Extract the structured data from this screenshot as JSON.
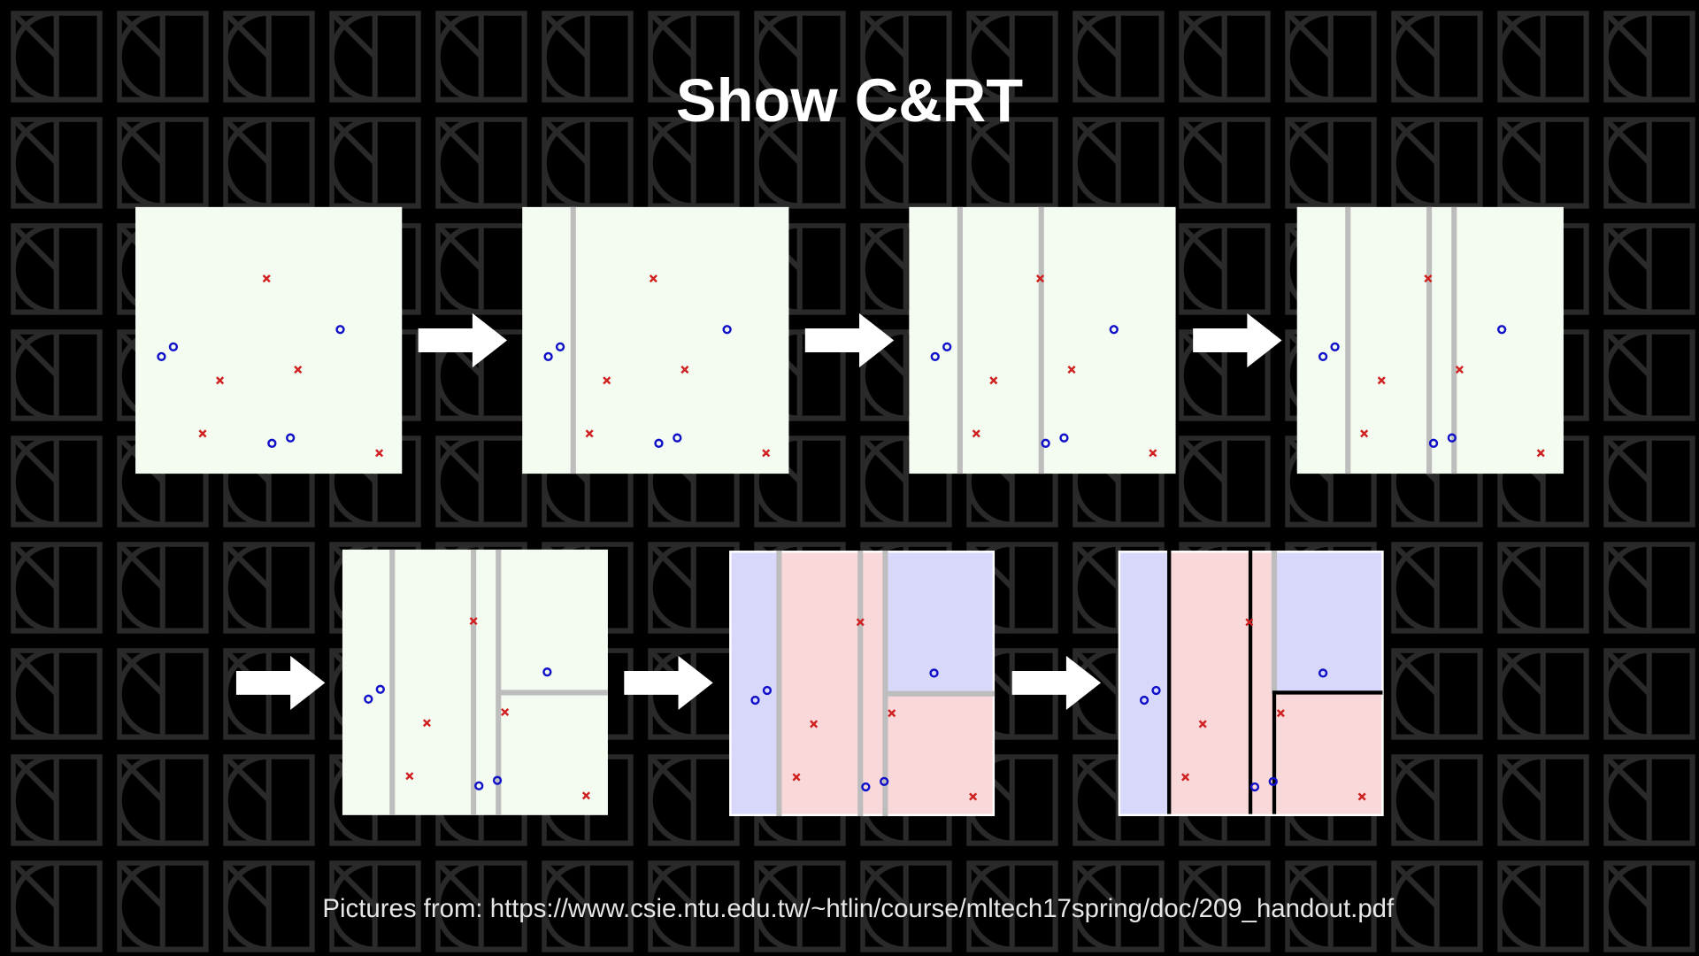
{
  "title": "Show C&RT",
  "caption": "Pictures from: https://www.csie.ntu.edu.tw/~htlin/course/mltech17spring/doc/209_handout.pdf"
}
